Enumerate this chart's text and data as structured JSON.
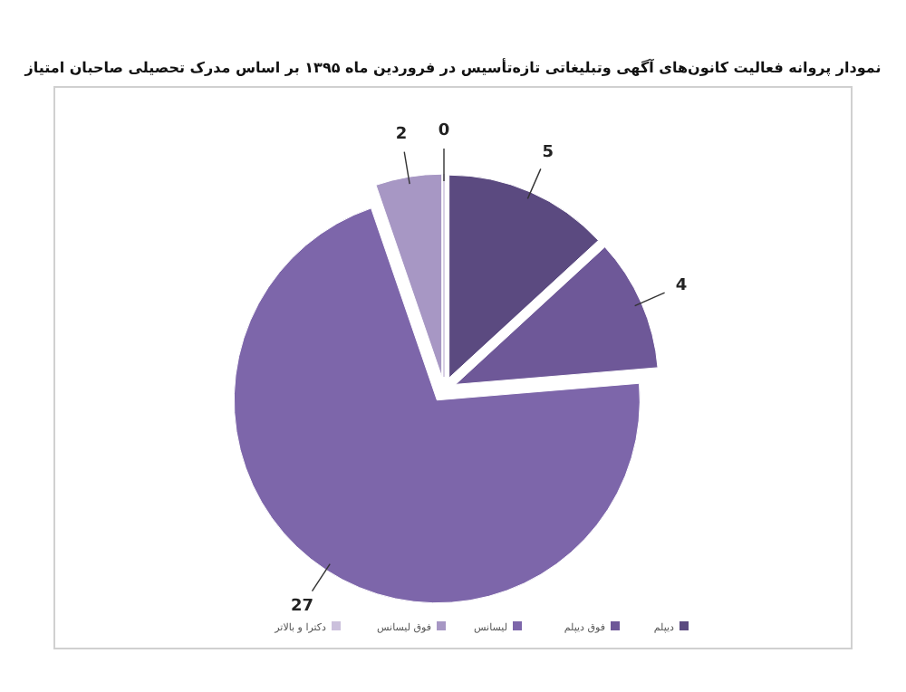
{
  "chart_data": {
    "type": "pie",
    "title": "نمودار پروانه فعالیت کانون‌های آگهی وتبلیغاتی تازه‌تأسیس در فروردین ماه ۱۳۹۵ بر اساس مدرک تحصیلی صاحبان امتیاز",
    "categories": [
      "دیپلم",
      "فوق دیپلم",
      "لیسانس",
      "فوق لیسانس",
      "دکترا و بالاتر"
    ],
    "values": [
      5,
      4,
      27,
      2,
      0
    ],
    "colors": [
      "#5b4a80",
      "#6e5898",
      "#7d66aa",
      "#a797c4",
      "#cbc0dc"
    ],
    "value_labels": [
      "5",
      "4",
      "27",
      "2",
      "0"
    ],
    "legend": "bottom"
  }
}
